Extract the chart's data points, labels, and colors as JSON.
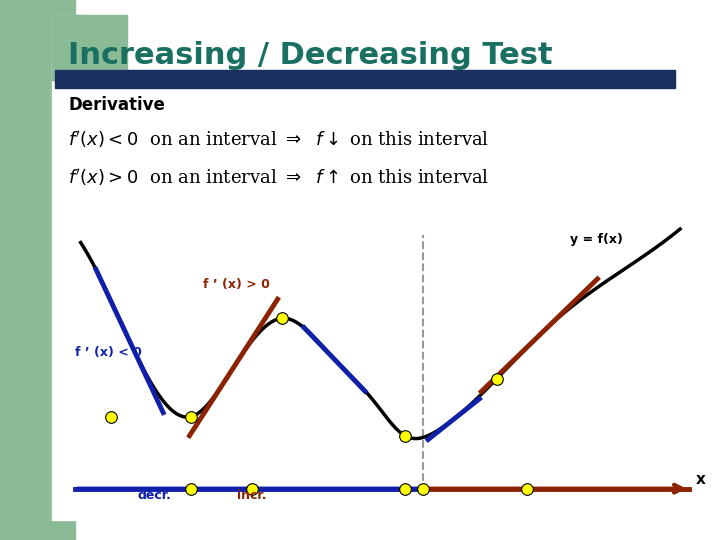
{
  "title": "Increasing / Decreasing Test",
  "title_color": "#1a7060",
  "title_fontsize": 22,
  "bg_color": "#ffffff",
  "green_rect_color": "#8aba96",
  "blue_bar_color": "#1a3060",
  "derivative_label": "Derivative",
  "label_fp_lt0": "f ’ (x) < 0",
  "label_fp_gt0": "f ’ (x) > 0",
  "label_yfx": "y = f(x)",
  "label_decr": "decr.",
  "label_incr": "incr.",
  "label_x": "x",
  "curve_color": "#000000",
  "tangent_neg_color": "#1020aa",
  "tangent_pos_color": "#8b2200",
  "axis_blue_color": "#1020aa",
  "axis_red_color": "#8b2200",
  "dot_color": "#ffff00",
  "dashed_line_color": "#999999",
  "text_decr_color": "#1020aa",
  "text_incr_color": "#8b2200",
  "text_fp_lt0_color": "#1020aa",
  "text_fp_gt0_color": "#8b2200",
  "text_yfx_color": "#000000"
}
